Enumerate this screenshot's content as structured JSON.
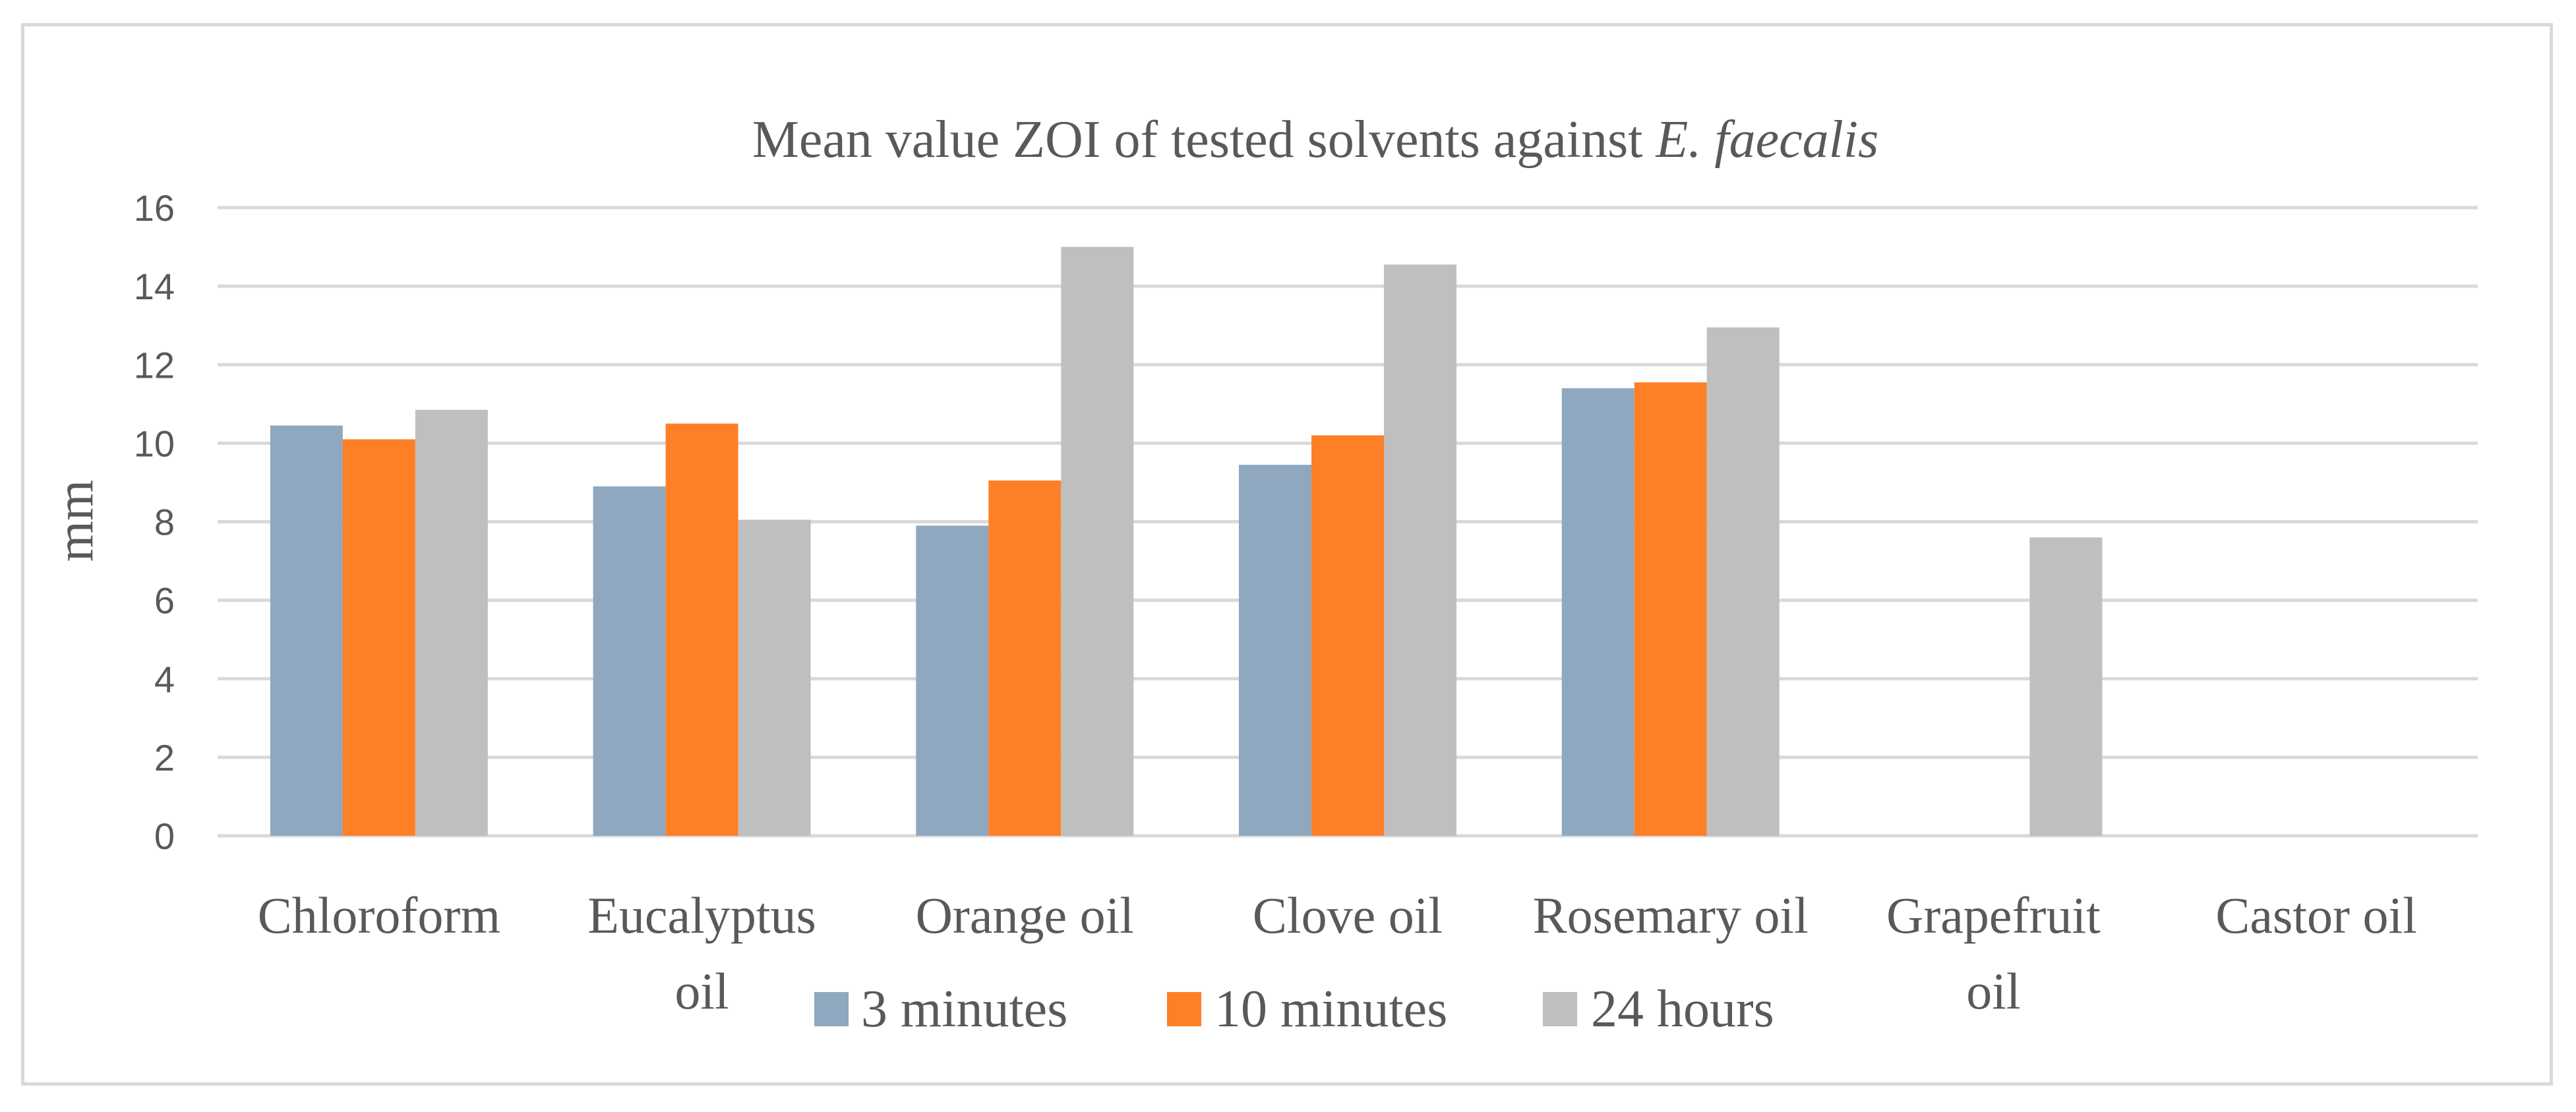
{
  "chart_data": {
    "type": "bar",
    "title": "Mean value ZOI of tested solvents against",
    "title_italic": "E. faecalis",
    "ylabel": "mm",
    "xlabel": "",
    "ylim": [
      0,
      16
    ],
    "yticks": [
      0,
      2,
      4,
      6,
      8,
      10,
      12,
      14,
      16
    ],
    "grid": true,
    "legend_position": "bottom",
    "categories": [
      [
        "Chloroform"
      ],
      [
        "Eucalyptus",
        "oil"
      ],
      [
        "Orange oil"
      ],
      [
        "Clove oil"
      ],
      [
        "Rosemary oil"
      ],
      [
        "Grapefruit",
        "oil"
      ],
      [
        "Castor oil"
      ]
    ],
    "series": [
      {
        "name": "3 minutes",
        "color": "#8fa8bf",
        "values": [
          10.45,
          8.9,
          7.9,
          9.45,
          11.4,
          0,
          0
        ]
      },
      {
        "name": "10 minutes",
        "color": "#ff7f27",
        "values": [
          10.1,
          10.5,
          9.05,
          10.2,
          11.55,
          0,
          0
        ]
      },
      {
        "name": "24 hours",
        "color": "#bfbfbf",
        "values": [
          10.85,
          8.05,
          15.0,
          14.55,
          12.95,
          7.6,
          0
        ]
      }
    ]
  }
}
